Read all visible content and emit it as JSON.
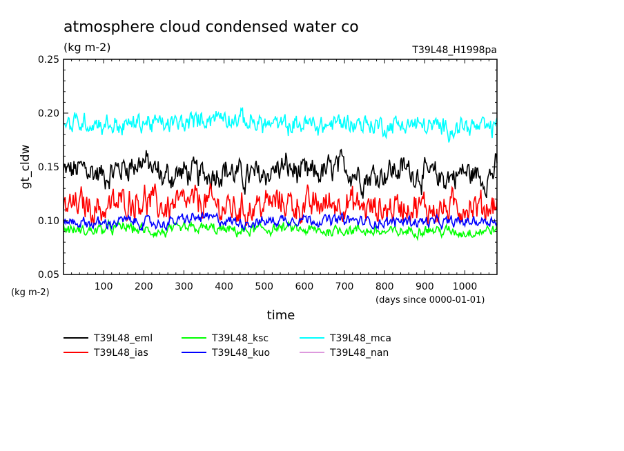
{
  "chart_data": {
    "type": "line",
    "title": "atmosphere cloud condensed water co",
    "subtitle": "(kg m-2)",
    "run_label": "T39L48_H1998pa",
    "xlabel": "time",
    "xunits": "(days since 0000-01-01)",
    "ylabel": "gt_cldw",
    "yunits": "(kg m-2)",
    "xlim": [
      0,
      1080
    ],
    "ylim": [
      0.05,
      0.25
    ],
    "xticks": [
      100,
      200,
      300,
      400,
      500,
      600,
      700,
      800,
      900,
      1000
    ],
    "yticks": [
      0.05,
      0.1,
      0.15,
      0.2,
      0.25
    ],
    "ytick_labels": [
      "0.05",
      "0.10",
      "0.15",
      "0.20",
      "0.25"
    ],
    "grid": false,
    "legend_position": "bottom",
    "series": [
      {
        "name": "T39L48_eml",
        "color": "#000000",
        "x": [
          0,
          50,
          100,
          150,
          200,
          250,
          300,
          350,
          400,
          450,
          500,
          550,
          600,
          650,
          700,
          750,
          800,
          850,
          900,
          950,
          1000,
          1050,
          1080
        ],
        "y": [
          0.145,
          0.148,
          0.142,
          0.15,
          0.155,
          0.14,
          0.145,
          0.142,
          0.148,
          0.14,
          0.143,
          0.15,
          0.142,
          0.145,
          0.15,
          0.14,
          0.145,
          0.148,
          0.142,
          0.14,
          0.145,
          0.14,
          0.148
        ]
      },
      {
        "name": "T39L48_ias",
        "color": "#ff0000",
        "x": [
          0,
          50,
          100,
          150,
          200,
          250,
          300,
          350,
          400,
          450,
          500,
          550,
          600,
          650,
          700,
          750,
          800,
          850,
          900,
          950,
          1000,
          1050,
          1080
        ],
        "y": [
          0.112,
          0.115,
          0.11,
          0.118,
          0.12,
          0.112,
          0.115,
          0.118,
          0.112,
          0.11,
          0.115,
          0.118,
          0.112,
          0.115,
          0.118,
          0.112,
          0.11,
          0.115,
          0.112,
          0.11,
          0.115,
          0.112,
          0.118
        ]
      },
      {
        "name": "T39L48_ksc",
        "color": "#00ff00",
        "x": [
          0,
          50,
          100,
          150,
          200,
          250,
          300,
          350,
          400,
          450,
          500,
          550,
          600,
          650,
          700,
          750,
          800,
          850,
          900,
          950,
          1000,
          1050,
          1080
        ],
        "y": [
          0.093,
          0.09,
          0.092,
          0.094,
          0.091,
          0.089,
          0.092,
          0.093,
          0.091,
          0.09,
          0.092,
          0.093,
          0.091,
          0.09,
          0.092,
          0.091,
          0.089,
          0.09,
          0.092,
          0.09,
          0.089,
          0.091,
          0.092
        ]
      },
      {
        "name": "T39L48_kuo",
        "color": "#0000ff",
        "x": [
          0,
          50,
          100,
          150,
          200,
          250,
          300,
          350,
          400,
          450,
          500,
          550,
          600,
          650,
          700,
          750,
          800,
          850,
          900,
          950,
          1000,
          1050,
          1080
        ],
        "y": [
          0.1,
          0.098,
          0.097,
          0.1,
          0.098,
          0.097,
          0.101,
          0.103,
          0.1,
          0.098,
          0.099,
          0.101,
          0.102,
          0.1,
          0.101,
          0.099,
          0.098,
          0.1,
          0.099,
          0.098,
          0.099,
          0.1,
          0.101
        ]
      },
      {
        "name": "T39L48_mca",
        "color": "#00ffff",
        "x": [
          0,
          50,
          100,
          150,
          200,
          250,
          300,
          350,
          400,
          450,
          500,
          550,
          600,
          650,
          700,
          750,
          800,
          850,
          900,
          950,
          1000,
          1050,
          1080
        ],
        "y": [
          0.188,
          0.192,
          0.19,
          0.188,
          0.192,
          0.189,
          0.19,
          0.195,
          0.198,
          0.193,
          0.19,
          0.188,
          0.19,
          0.188,
          0.192,
          0.19,
          0.188,
          0.19,
          0.188,
          0.186,
          0.188,
          0.185,
          0.187
        ]
      },
      {
        "name": "T39L48_nan",
        "color": "#dd99dd",
        "x": [],
        "y": []
      }
    ]
  }
}
